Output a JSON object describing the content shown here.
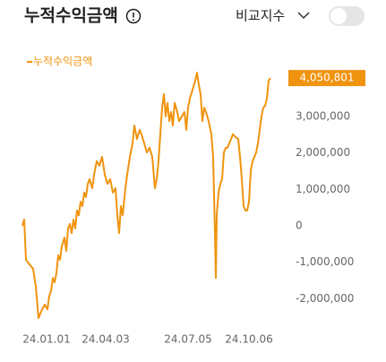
{
  "header": {
    "title": "누적수익금액",
    "compare_label": "비교지수"
  },
  "chart_data": {
    "type": "line",
    "series": [
      {
        "name": "누적수익금액",
        "color": "#f0930e",
        "values": [
          0,
          170000,
          -930000,
          -1060000,
          -1180000,
          -1670000,
          -2530000,
          -2410000,
          -2290000,
          -2160000,
          -2290000,
          -1920000,
          -1790000,
          -1430000,
          -1550000,
          -1300000,
          -810000,
          -930000,
          -570000,
          -320000,
          -690000,
          -70000,
          50000,
          -200000,
          170000,
          -70000,
          420000,
          290000,
          660000,
          540000,
          910000,
          790000,
          1150000,
          1280000,
          1030000,
          1400000,
          1770000,
          1650000,
          1890000,
          1400000,
          1150000,
          1280000,
          910000,
          1030000,
          290000,
          -200000,
          540000,
          290000,
          1030000,
          1400000,
          1890000,
          2260000,
          2750000,
          2380000,
          2630000,
          2510000,
          2260000,
          2010000,
          2140000,
          1890000,
          1030000,
          1280000,
          1770000,
          2510000,
          3240000,
          3610000,
          3000000,
          3370000,
          2870000,
          3120000,
          2750000,
          3370000,
          3120000,
          2870000,
          3000000,
          3120000,
          2630000,
          3240000,
          3490000,
          3730000,
          3980000,
          4200000,
          3860000,
          3610000,
          2870000,
          3240000,
          3120000,
          2870000,
          2510000,
          1890000,
          -200000,
          -1430000,
          290000,
          910000,
          1150000,
          1280000,
          2010000,
          2140000,
          2140000,
          2260000,
          2380000,
          2510000,
          2430000,
          2380000,
          1890000,
          1280000,
          540000,
          420000,
          420000,
          660000,
          1520000,
          1770000,
          1890000,
          2010000,
          2260000,
          2630000,
          3000000,
          3240000,
          3290000,
          3490000,
          3980000,
          4050801
        ]
      }
    ],
    "x": [
      0,
      2,
      4,
      8,
      12,
      15,
      18,
      20,
      22,
      25,
      28,
      30,
      32,
      34,
      36,
      38,
      40,
      42,
      44,
      47,
      49,
      51,
      53,
      55,
      57,
      59,
      61,
      63,
      65,
      67,
      69,
      71,
      73,
      75,
      78,
      80,
      83,
      86,
      89,
      92,
      95,
      98,
      101,
      104,
      106,
      108,
      110,
      112,
      115,
      117,
      120,
      123,
      125,
      128,
      131,
      133,
      136,
      139,
      142,
      145,
      148,
      150,
      152,
      154,
      156,
      158,
      160,
      162,
      164,
      166,
      168,
      170,
      173,
      175,
      178,
      181,
      183,
      185,
      187,
      190,
      193,
      195,
      197,
      199,
      201,
      203,
      205,
      208,
      211,
      213,
      215,
      216,
      217,
      219,
      221,
      223,
      225,
      227,
      229,
      231,
      233,
      235,
      238,
      241,
      243,
      245,
      247,
      249,
      251,
      253,
      255,
      257,
      259,
      261,
      263,
      265,
      267,
      269,
      271,
      273,
      275,
      277
    ],
    "last_value_label": "4,050,801",
    "xlim": [
      0,
      277
    ],
    "xticks": [
      {
        "value": 27,
        "label": "24.01.01"
      },
      {
        "value": 93,
        "label": "24.04.03"
      },
      {
        "value": 185,
        "label": "24.07.05"
      },
      {
        "value": 253,
        "label": "24.10.06"
      }
    ],
    "ylim": [
      -2800000,
      4250000
    ],
    "yticks": [
      {
        "value": -2000000,
        "label": "-2,000,000"
      },
      {
        "value": -1000000,
        "label": "-1,000,000"
      },
      0,
      {
        "value": 1000000,
        "label": "1,000,000"
      },
      {
        "value": 2000000,
        "label": "2,000,000"
      },
      {
        "value": 3000000,
        "label": "3,000,000"
      }
    ],
    "grid": false
  }
}
